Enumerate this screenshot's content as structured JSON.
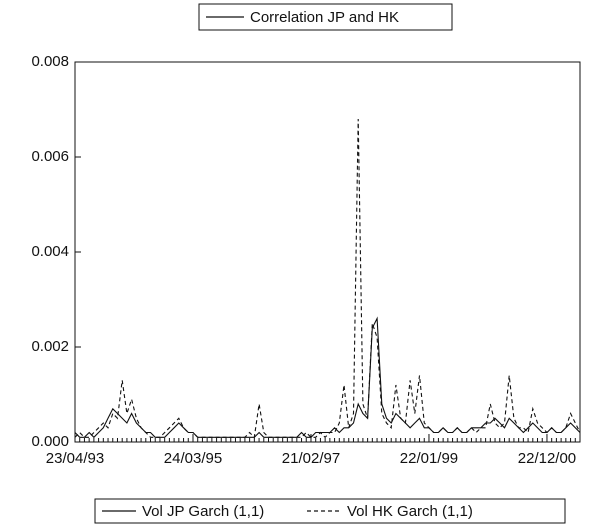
{
  "chart_data": {
    "type": "line",
    "title": "Correlation JP and HK",
    "categories": [
      "23/04/93",
      null,
      null,
      null,
      null,
      null,
      null,
      null,
      null,
      null,
      null,
      null,
      null,
      null,
      null,
      null,
      null,
      null,
      null,
      null,
      null,
      null,
      null,
      null,
      null,
      "24/03/95",
      null,
      null,
      null,
      null,
      null,
      null,
      null,
      null,
      null,
      null,
      null,
      null,
      null,
      null,
      null,
      null,
      null,
      null,
      null,
      null,
      null,
      null,
      null,
      null,
      "21/02/97",
      null,
      null,
      null,
      null,
      null,
      null,
      null,
      null,
      null,
      null,
      null,
      null,
      null,
      null,
      null,
      null,
      null,
      null,
      null,
      null,
      null,
      null,
      null,
      null,
      "22/01/99",
      null,
      null,
      null,
      null,
      null,
      null,
      null,
      null,
      null,
      null,
      null,
      null,
      null,
      null,
      null,
      null,
      null,
      null,
      null,
      null,
      null,
      null,
      null,
      null,
      "22/12/00",
      null,
      null,
      null,
      null,
      null,
      null,
      null
    ],
    "series": [
      {
        "name": "Vol JP Garch (1,1)",
        "color": "#111111",
        "dash": false,
        "values": [
          0.0002,
          0.0001,
          0.0001,
          0.0002,
          0.0001,
          0.0002,
          0.0003,
          0.0005,
          0.0007,
          0.0006,
          0.0005,
          0.0004,
          0.0006,
          0.0004,
          0.0003,
          0.0002,
          0.0002,
          0.0001,
          0.0001,
          0.0001,
          0.0002,
          0.0003,
          0.0004,
          0.0003,
          0.0002,
          0.0002,
          0.0001,
          0.0001,
          0.0001,
          0.0001,
          0.0001,
          0.0001,
          0.0001,
          0.0001,
          0.0001,
          0.0001,
          0.0001,
          0.0001,
          0.0001,
          0.0002,
          0.0001,
          0.0001,
          0.0001,
          0.0001,
          0.0001,
          0.0001,
          0.0001,
          0.0001,
          0.0002,
          0.0001,
          0.0001,
          0.0002,
          0.0002,
          0.0002,
          0.0002,
          0.0003,
          0.0002,
          0.0003,
          0.0003,
          0.0004,
          0.0008,
          0.0006,
          0.0005,
          0.0024,
          0.0026,
          0.0008,
          0.0005,
          0.0004,
          0.0006,
          0.0005,
          0.0004,
          0.0003,
          0.0004,
          0.0005,
          0.0003,
          0.0003,
          0.0002,
          0.0002,
          0.0003,
          0.0002,
          0.0002,
          0.0003,
          0.0002,
          0.0002,
          0.0003,
          0.0003,
          0.0003,
          0.0004,
          0.0004,
          0.0005,
          0.0004,
          0.0003,
          0.0005,
          0.0004,
          0.0003,
          0.0002,
          0.0003,
          0.0004,
          0.0003,
          0.0002,
          0.0002,
          0.0003,
          0.0002,
          0.0002,
          0.0003,
          0.0004,
          0.0003,
          0.0002
        ]
      },
      {
        "name": "Vol HK Garch (1,1)",
        "color": "#111111",
        "dash": true,
        "values": [
          0.0001,
          0.0002,
          0.0001,
          0.0001,
          0.0002,
          0.0003,
          0.0004,
          0.0003,
          0.0006,
          0.0005,
          0.0013,
          0.0006,
          0.0009,
          0.0005,
          0.0003,
          0.0002,
          0.0001,
          0.0001,
          0.0001,
          0.0002,
          0.0003,
          0.0004,
          0.0005,
          0.0003,
          0.0002,
          0.0002,
          0.0001,
          0.0001,
          0.0001,
          0.0001,
          0.0001,
          0.0001,
          0.0001,
          0.0001,
          0.0001,
          0.0001,
          0.0001,
          0.0002,
          0.0001,
          0.0008,
          0.0002,
          0.0001,
          0.0001,
          0.0001,
          0.0001,
          0.0001,
          0.0001,
          0.0001,
          0.0001,
          0.0002,
          0.0001,
          0.0001,
          0.0002,
          0.0001,
          0.0002,
          0.0002,
          0.0004,
          0.0012,
          0.0003,
          0.0006,
          0.0068,
          0.0008,
          0.0005,
          0.0025,
          0.0022,
          0.0006,
          0.0004,
          0.0003,
          0.0012,
          0.0005,
          0.0004,
          0.0013,
          0.0006,
          0.0014,
          0.0004,
          0.0003,
          0.0002,
          0.0002,
          0.0003,
          0.0002,
          0.0002,
          0.0003,
          0.0002,
          0.0002,
          0.0003,
          0.0002,
          0.0003,
          0.0003,
          0.0008,
          0.0004,
          0.0003,
          0.0004,
          0.0014,
          0.0005,
          0.0003,
          0.0003,
          0.0002,
          0.0007,
          0.0004,
          0.0003,
          0.0002,
          0.0003,
          0.0002,
          0.0002,
          0.0003,
          0.0006,
          0.0004,
          0.0002
        ]
      }
    ],
    "ylim": [
      0,
      0.008
    ],
    "yticks": [
      {
        "value": 0,
        "label": "0.000"
      },
      {
        "value": 0.002,
        "label": "0.002"
      },
      {
        "value": 0.004,
        "label": "0.004"
      },
      {
        "value": 0.006,
        "label": "0.006"
      },
      {
        "value": 0.008,
        "label": "0.008"
      }
    ]
  }
}
